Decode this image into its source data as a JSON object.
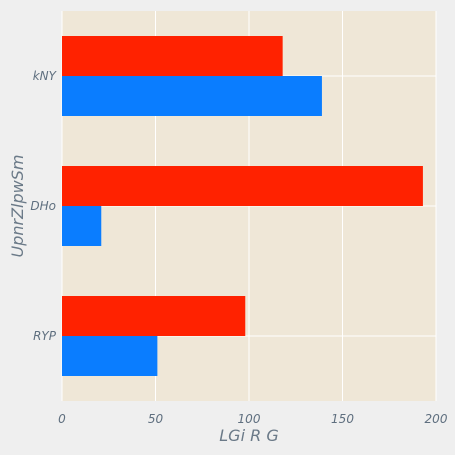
{
  "chart_data": {
    "type": "bar",
    "orientation": "horizontal",
    "title": "",
    "xlabel": "LGi R G",
    "ylabel": "UpnrZlpwSm",
    "categories": [
      "kNY",
      "DHo",
      "RYP"
    ],
    "series": [
      {
        "values": [
          118,
          193,
          98
        ]
      },
      {
        "values": [
          139,
          21,
          51
        ]
      }
    ],
    "xlim": [
      0,
      200
    ],
    "xticks": [
      0,
      50,
      100,
      150,
      200
    ],
    "grid": true,
    "legend": "none",
    "colors": {
      "series": [
        "#ff2200",
        "#0a7dff"
      ],
      "plot_background": "#efe7d7",
      "figure_background": "#efefef",
      "grid": "#ffffff",
      "text": "#5f6f7f"
    }
  }
}
